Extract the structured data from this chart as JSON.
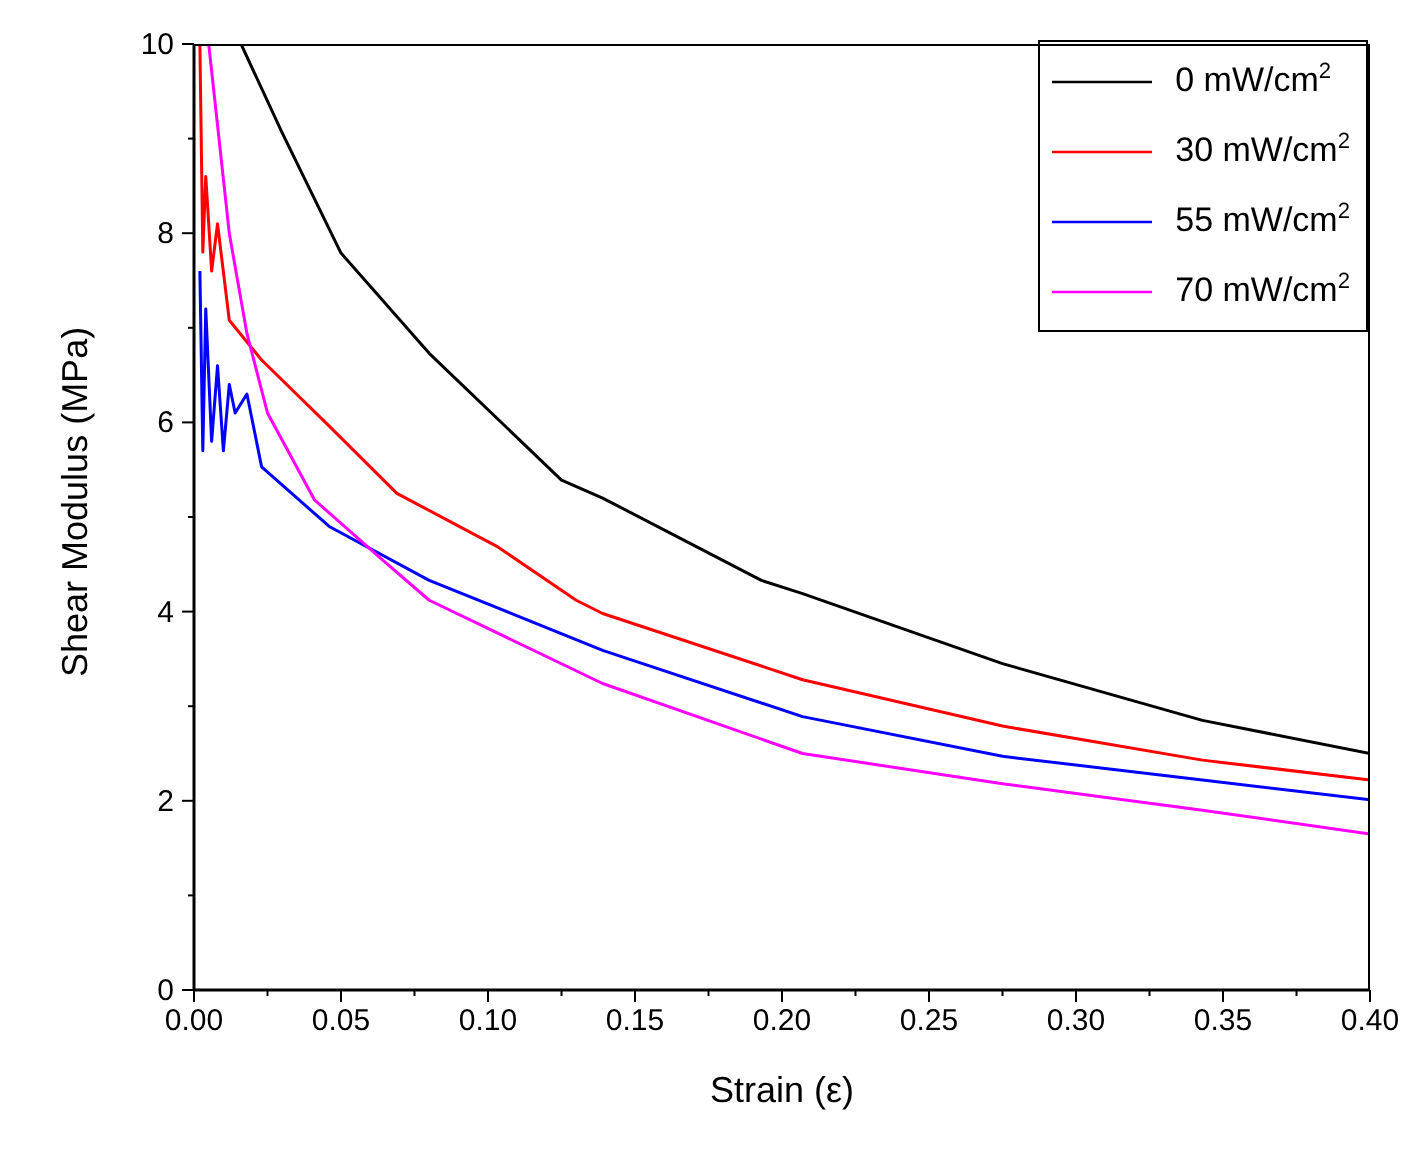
{
  "chart_data": {
    "type": "line",
    "xlabel": "Strain (ε)",
    "ylabel": "Shear Modulus (MPa)",
    "xlim": [
      0,
      0.4
    ],
    "ylim": [
      0,
      10
    ],
    "xticks": [
      {
        "value": 0,
        "label": "0.00"
      },
      {
        "value": 0.025,
        "label": null
      },
      {
        "value": 0.05,
        "label": "0.05"
      },
      {
        "value": 0.075,
        "label": null
      },
      {
        "value": 0.1,
        "label": "0.10"
      },
      {
        "value": 0.125,
        "label": null
      },
      {
        "value": 0.15,
        "label": "0.15"
      },
      {
        "value": 0.175,
        "label": null
      },
      {
        "value": 0.2,
        "label": "0.20"
      },
      {
        "value": 0.225,
        "label": null
      },
      {
        "value": 0.25,
        "label": "0.25"
      },
      {
        "value": 0.275,
        "label": null
      },
      {
        "value": 0.3,
        "label": "0.30"
      },
      {
        "value": 0.325,
        "label": null
      },
      {
        "value": 0.35,
        "label": "0.35"
      },
      {
        "value": 0.375,
        "label": null
      },
      {
        "value": 0.4,
        "label": "0.40"
      }
    ],
    "yticks": [
      0,
      {
        "value": 1,
        "label": null
      },
      2,
      {
        "value": 3,
        "label": null
      },
      4,
      {
        "value": 5,
        "label": null
      },
      6,
      {
        "value": 7,
        "label": null
      },
      8,
      {
        "value": 9,
        "label": null
      },
      10
    ],
    "legend": "top right",
    "grid": false,
    "marker": "none",
    "line_style": "solid",
    "series": [
      {
        "name": "0 mW/cm$^{2}$",
        "color": "#000000",
        "x": [
          0.016,
          0.03,
          0.05,
          0.08,
          0.125,
          0.139,
          0.193,
          0.207,
          0.275,
          0.343,
          0.4
        ],
        "values": [
          10,
          9.06,
          7.79,
          6.73,
          5.39,
          5.2,
          4.33,
          4.19,
          3.45,
          2.85,
          2.5
        ]
      },
      {
        "name": "30 mW/cm$^{2}$",
        "color": "#ff0000",
        "x": [
          0.002,
          0.003,
          0.004,
          0.006,
          0.008,
          0.012,
          0.023,
          0.046,
          0.069,
          0.103,
          0.13,
          0.139,
          0.207,
          0.275,
          0.343,
          0.4
        ],
        "values": [
          10,
          7.8,
          8.6,
          7.6,
          8.1,
          7.08,
          6.66,
          5.96,
          5.25,
          4.69,
          4.12,
          3.98,
          3.28,
          2.79,
          2.43,
          2.22
        ]
      },
      {
        "name": "55 mW/cm$^{2}$",
        "color": "#0000ff",
        "x": [
          0.002,
          0.003,
          0.004,
          0.006,
          0.008,
          0.01,
          0.012,
          0.014,
          0.018,
          0.023,
          0.046,
          0.08,
          0.139,
          0.207,
          0.275,
          0.343,
          0.4
        ],
        "values": [
          7.6,
          5.7,
          7.2,
          5.8,
          6.6,
          5.7,
          6.4,
          6.1,
          6.3,
          5.53,
          4.9,
          4.33,
          3.59,
          2.89,
          2.47,
          2.22,
          2.01
        ]
      },
      {
        "name": "70 mW/cm$^{2}$",
        "color": "#ff00ff",
        "x": [
          0.005,
          0.012,
          0.018,
          0.025,
          0.041,
          0.064,
          0.08,
          0.139,
          0.207,
          0.275,
          0.343,
          0.4
        ],
        "values": [
          10,
          8,
          6.94,
          6.1,
          5.18,
          4.55,
          4.12,
          3.24,
          2.5,
          2.18,
          1.9,
          1.65
        ]
      }
    ]
  }
}
